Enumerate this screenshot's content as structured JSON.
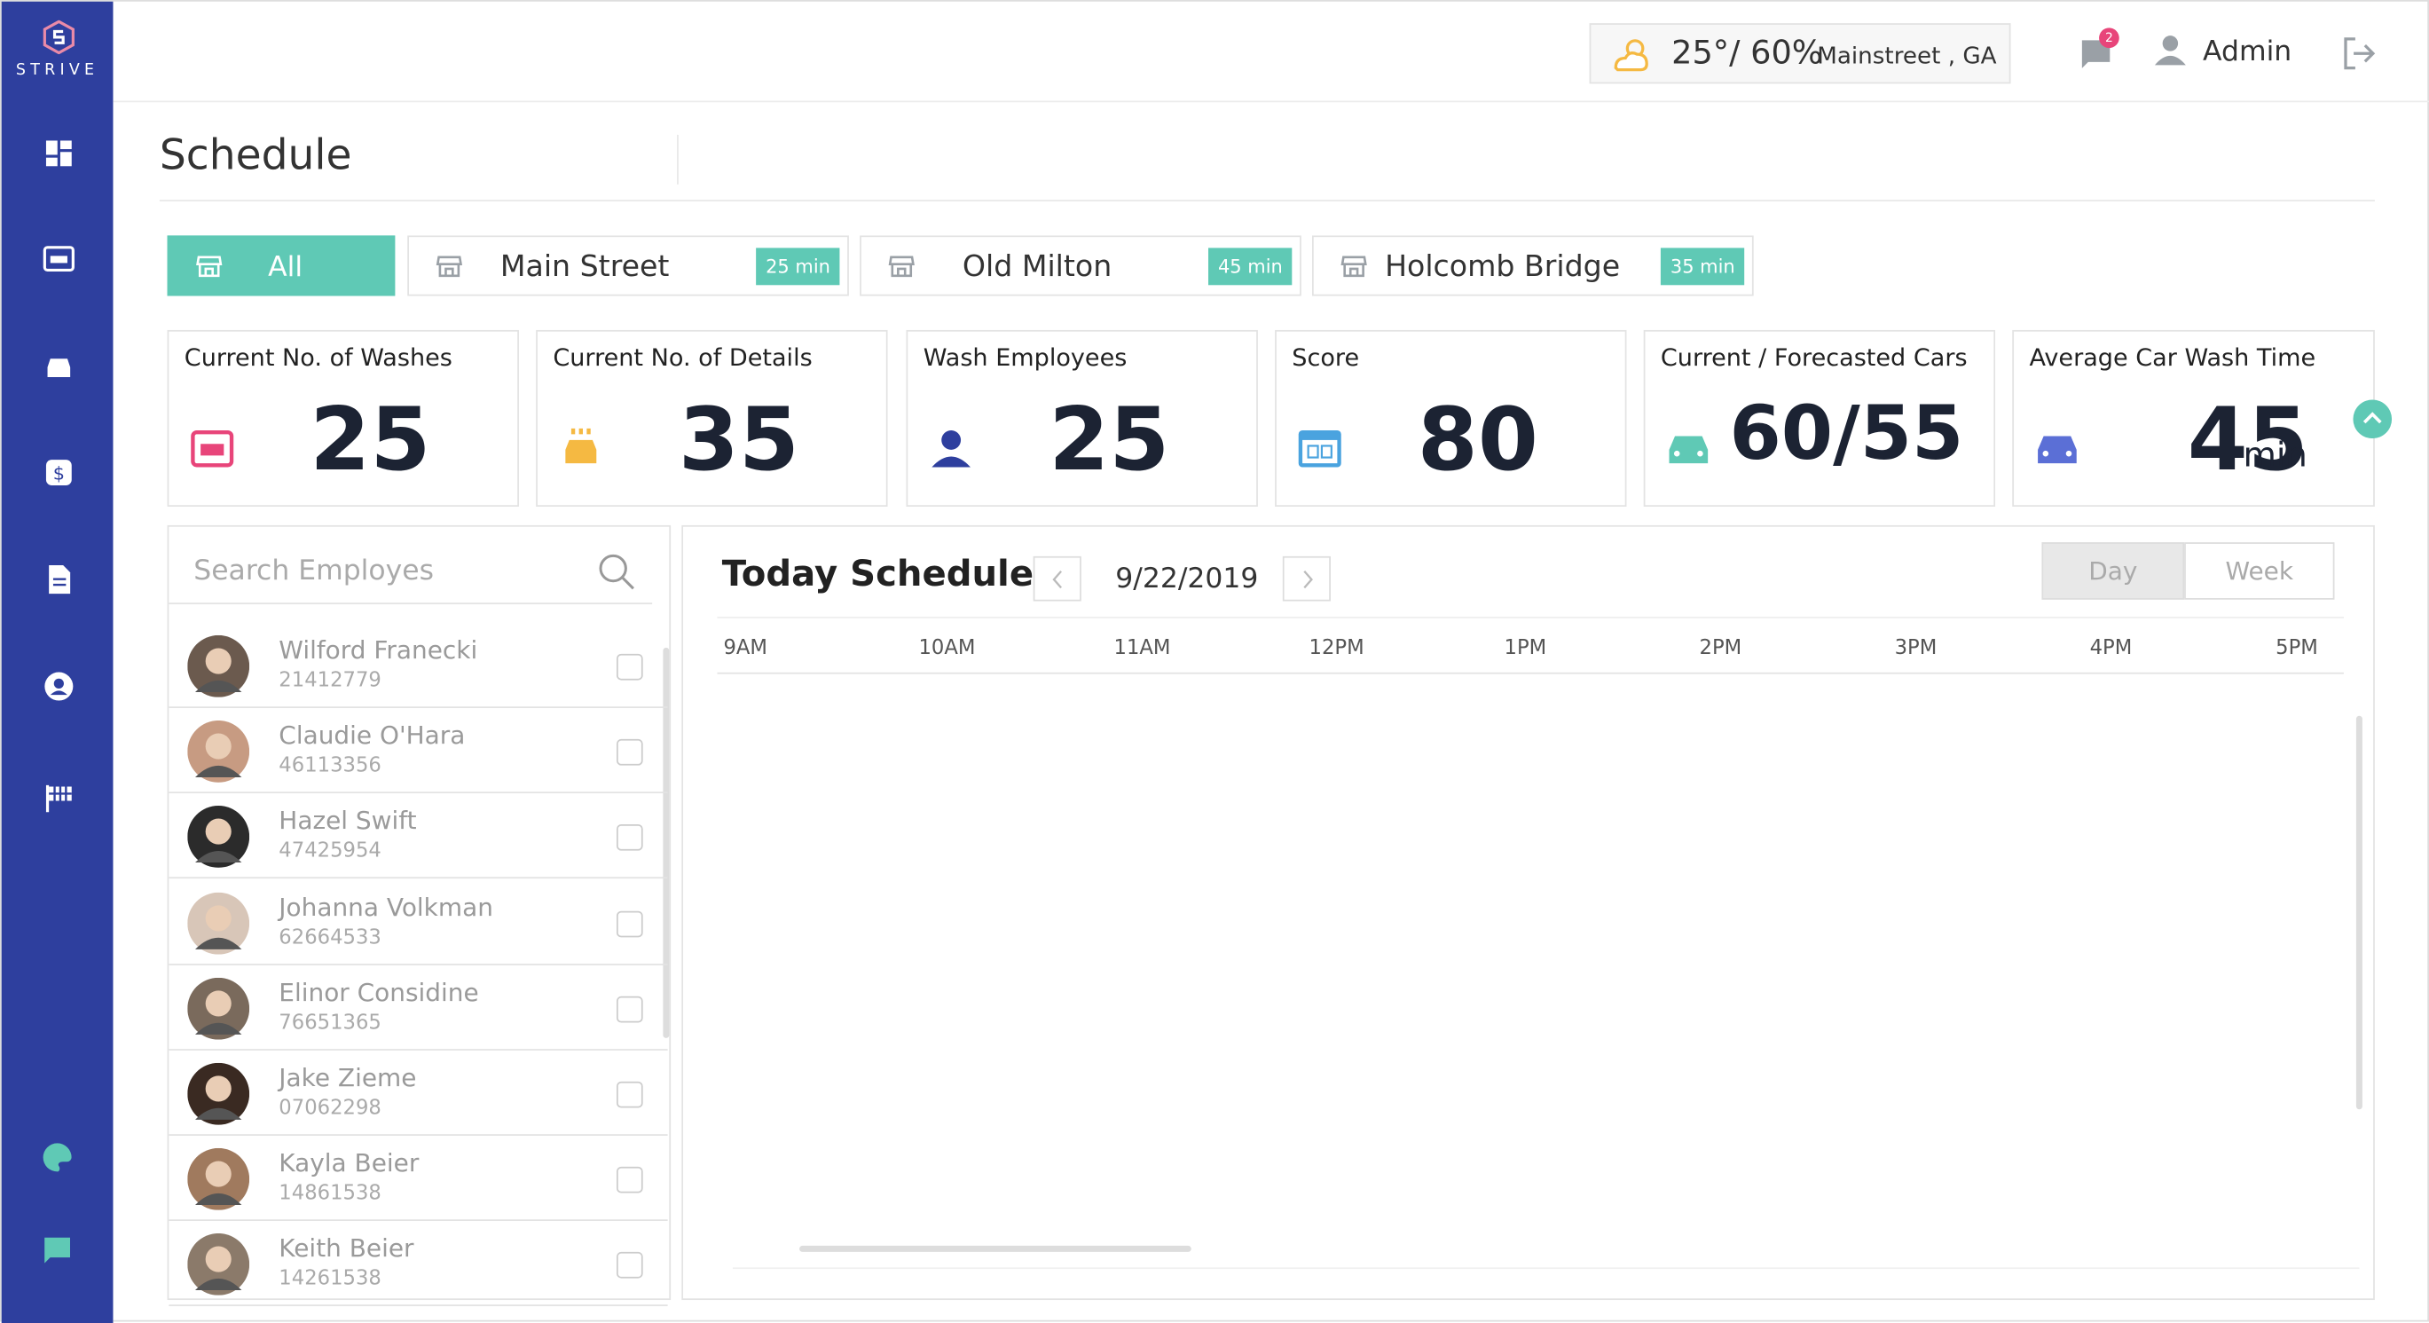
{
  "brand": "STRIVE",
  "header": {
    "weather": "25°/ 60%",
    "location": "Mainstreet , GA",
    "notifications": "2",
    "user": "Admin"
  },
  "page_title": "Schedule",
  "locations": [
    {
      "name": "All"
    },
    {
      "name": "Main Street",
      "time": "25 min"
    },
    {
      "name": "Old Milton",
      "time": "45 min"
    },
    {
      "name": "Holcomb Bridge",
      "time": "35 min"
    }
  ],
  "stats": [
    {
      "label": "Current No. of Washes",
      "value": "25"
    },
    {
      "label": "Current No. of Details",
      "value": "35"
    },
    {
      "label": "Wash Employees",
      "value": "25"
    },
    {
      "label": "Score",
      "value": "80"
    },
    {
      "label": "Current / Forecasted Cars",
      "value": "60/55"
    },
    {
      "label": "Average Car Wash Time",
      "value": "45",
      "unit": "min"
    }
  ],
  "search_placeholder": "Search Employes",
  "employees": [
    {
      "name": "Wilford Franecki",
      "id": "21412779"
    },
    {
      "name": "Claudie O'Hara",
      "id": "46113356"
    },
    {
      "name": "Hazel Swift",
      "id": "47425954"
    },
    {
      "name": "Johanna Volkman",
      "id": "62664533"
    },
    {
      "name": "Elinor Considine",
      "id": "76651365"
    },
    {
      "name": "Jake Zieme",
      "id": "07062298"
    },
    {
      "name": "Kayla Beier",
      "id": "14861538"
    },
    {
      "name": "Keith Beier",
      "id": "14261538"
    }
  ],
  "schedule": {
    "title": "Today Schedule",
    "date": "9/22/2019",
    "views": [
      "Day",
      "Week"
    ],
    "hours": [
      "9AM",
      "10AM",
      "11AM",
      "12PM",
      "1PM",
      "2PM",
      "3PM",
      "4PM",
      "5PM"
    ]
  }
}
